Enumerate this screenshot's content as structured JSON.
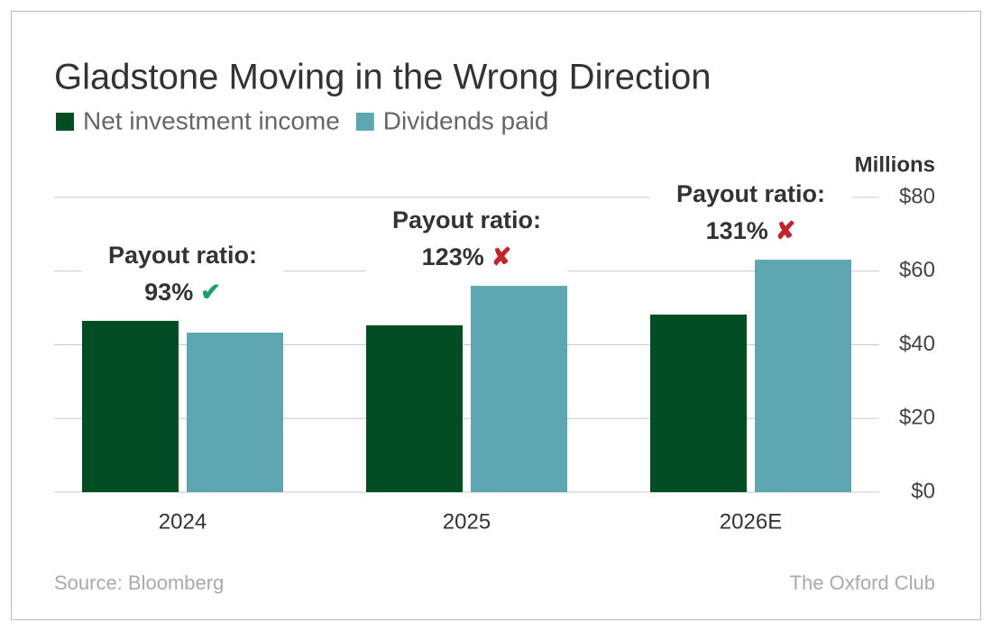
{
  "chart_data": {
    "type": "bar",
    "title": "Gladstone Moving in the Wrong Direction",
    "y_axis_label": "Millions",
    "categories": [
      "2024",
      "2025",
      "2026E"
    ],
    "series": [
      {
        "name": "Net investment income",
        "color": "#034d24",
        "values": [
          46.5,
          45.3,
          48.2
        ]
      },
      {
        "name": "Dividends paid",
        "color": "#5fa7b0",
        "values": [
          43.3,
          56.0,
          63.1
        ]
      }
    ],
    "ylim": [
      0,
      80
    ],
    "yticks": [
      {
        "value": 0,
        "label": "$0"
      },
      {
        "value": 20,
        "label": "$20"
      },
      {
        "value": 40,
        "label": "$40"
      },
      {
        "value": 60,
        "label": "$60"
      },
      {
        "value": 80,
        "label": "$80"
      }
    ],
    "grid": true,
    "legend": "top-left",
    "annotations": [
      {
        "label": "Payout ratio:",
        "value": "93%",
        "symbol": "✔",
        "symbol_color": "#1aa06a"
      },
      {
        "label": "Payout ratio:",
        "value": "123%",
        "symbol": "✘",
        "symbol_color": "#c0242c"
      },
      {
        "label": "Payout ratio:",
        "value": "131%",
        "symbol": "✘",
        "symbol_color": "#c0242c"
      }
    ],
    "source": "Source: Bloomberg",
    "credit": "The Oxford Club"
  }
}
